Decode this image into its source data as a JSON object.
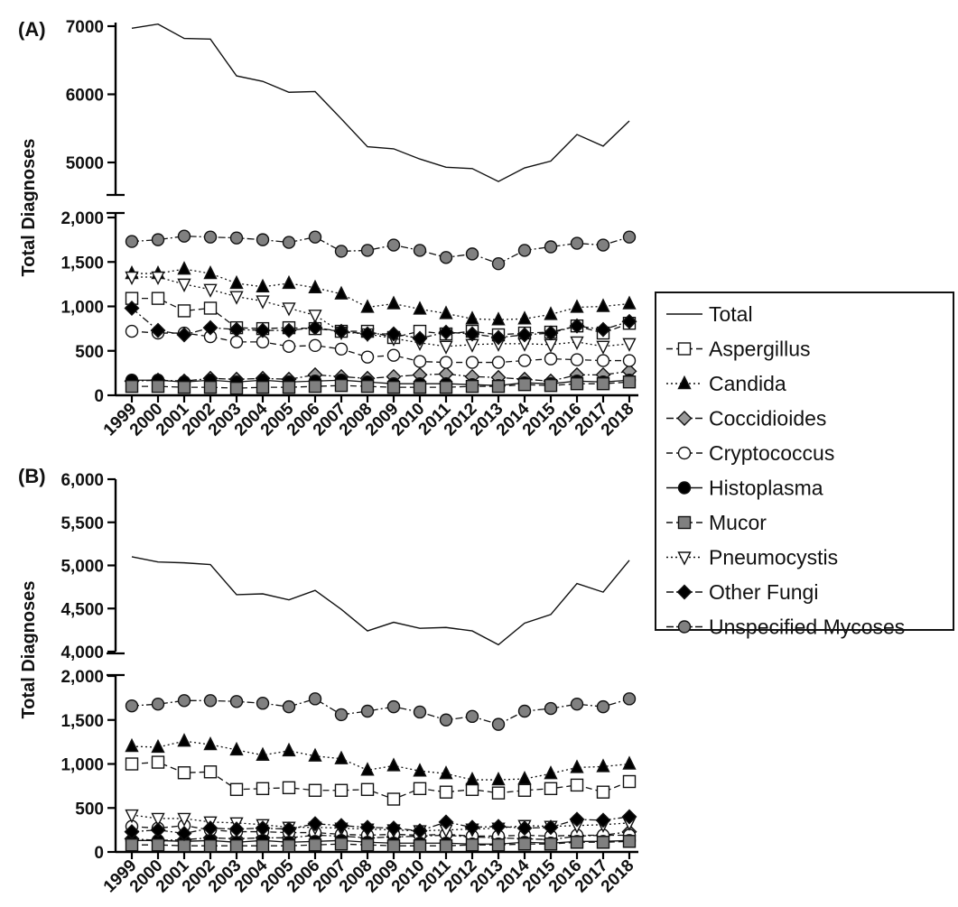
{
  "figure": {
    "legend": [
      {
        "name": "Total",
        "marker": "none",
        "dash": "solid",
        "fill": "none"
      },
      {
        "name": "Aspergillus",
        "marker": "square",
        "dash": "dash",
        "fill": "#ffffff"
      },
      {
        "name": "Candida",
        "marker": "triangle-up",
        "dash": "dot",
        "fill": "#000000"
      },
      {
        "name": "Coccidioides",
        "marker": "diamond",
        "dash": "dashdot",
        "fill": "#999999"
      },
      {
        "name": "Cryptococcus",
        "marker": "circle",
        "dash": "dash",
        "fill": "#ffffff"
      },
      {
        "name": "Histoplasma",
        "marker": "circle",
        "dash": "solid",
        "fill": "#000000"
      },
      {
        "name": "Mucor",
        "marker": "square",
        "dash": "dash",
        "fill": "#808080"
      },
      {
        "name": "Pneumocystis",
        "marker": "triangle-down",
        "dash": "dot",
        "fill": "#ffffff"
      },
      {
        "name": "Other Fungi",
        "marker": "diamond",
        "dash": "dashdot",
        "fill": "#000000"
      },
      {
        "name": "Unspecified Mycoses",
        "marker": "circle",
        "dash": "dashdot",
        "fill": "#808080"
      }
    ],
    "legend_placement": "right"
  },
  "chart_data": [
    {
      "panel_label": "(A)",
      "type": "line",
      "ylabel": "Total Diagnoses",
      "x": [
        1999,
        2000,
        2001,
        2002,
        2003,
        2004,
        2005,
        2006,
        2007,
        2008,
        2009,
        2010,
        2011,
        2012,
        2013,
        2014,
        2015,
        2016,
        2017,
        2018
      ],
      "x_tick_labels": [
        "1999",
        "2000",
        "2001",
        "2002",
        "2003",
        "2004",
        "2005",
        "2006",
        "2007",
        "2008",
        "2009",
        "2010",
        "2011",
        "2012",
        "2013",
        "2014",
        "2015",
        "2016",
        "2017",
        "2018"
      ],
      "axis_break": true,
      "upper_ylim": [
        4750,
        7100
      ],
      "upper_yticks": [
        5000,
        6000,
        7000
      ],
      "upper_ytick_labels": [
        "5000",
        "6000",
        "7000"
      ],
      "lower_ylim": [
        0,
        2000
      ],
      "lower_yticks": [
        0,
        500,
        1000,
        1500,
        2000
      ],
      "lower_ytick_labels": [
        "0",
        "500",
        "1,000",
        "1,500",
        "2,000"
      ],
      "grid": false,
      "series": [
        {
          "name": "Total",
          "values": [
            6970,
            7030,
            6820,
            6810,
            6270,
            6190,
            6030,
            6040,
            5640,
            5230,
            5200,
            5050,
            4930,
            4910,
            4720,
            4920,
            5020,
            5410,
            5240,
            5610
          ]
        },
        {
          "name": "Aspergillus",
          "values": [
            1090,
            1090,
            950,
            980,
            760,
            750,
            760,
            750,
            720,
            720,
            650,
            720,
            690,
            720,
            680,
            700,
            710,
            780,
            700,
            810
          ]
        },
        {
          "name": "Candida",
          "values": [
            1370,
            1370,
            1420,
            1370,
            1260,
            1220,
            1260,
            1210,
            1140,
            990,
            1030,
            970,
            920,
            860,
            850,
            860,
            910,
            990,
            1000,
            1030
          ]
        },
        {
          "name": "Coccidioides",
          "values": [
            160,
            170,
            160,
            190,
            180,
            190,
            180,
            230,
            210,
            190,
            210,
            230,
            240,
            210,
            200,
            180,
            160,
            230,
            230,
            270
          ]
        },
        {
          "name": "Cryptococcus",
          "values": [
            720,
            700,
            700,
            660,
            600,
            600,
            550,
            560,
            520,
            430,
            450,
            380,
            370,
            370,
            370,
            390,
            410,
            400,
            390,
            390
          ]
        },
        {
          "name": "Histoplasma",
          "values": [
            170,
            170,
            150,
            170,
            150,
            170,
            150,
            160,
            170,
            150,
            130,
            130,
            130,
            120,
            110,
            140,
            130,
            160,
            150,
            170
          ]
        },
        {
          "name": "Mucor",
          "values": [
            100,
            100,
            90,
            90,
            80,
            90,
            90,
            100,
            110,
            100,
            90,
            90,
            90,
            100,
            100,
            120,
            110,
            130,
            130,
            150
          ]
        },
        {
          "name": "Pneumocystis",
          "values": [
            1330,
            1330,
            1250,
            1190,
            1110,
            1060,
            980,
            900,
            710,
            690,
            640,
            590,
            550,
            570,
            580,
            580,
            570,
            600,
            550,
            580
          ]
        },
        {
          "name": "Other Fungi",
          "values": [
            980,
            730,
            680,
            760,
            740,
            730,
            730,
            760,
            720,
            690,
            690,
            640,
            710,
            690,
            650,
            680,
            700,
            780,
            740,
            830
          ]
        },
        {
          "name": "Unspecified Mycoses",
          "values": [
            1730,
            1750,
            1790,
            1780,
            1770,
            1750,
            1720,
            1780,
            1620,
            1630,
            1690,
            1630,
            1550,
            1590,
            1480,
            1630,
            1670,
            1710,
            1690,
            1780
          ]
        }
      ]
    },
    {
      "panel_label": "(B)",
      "type": "line",
      "ylabel": "Total Diagnoses",
      "x": [
        1999,
        2000,
        2001,
        2002,
        2003,
        2004,
        2005,
        2006,
        2007,
        2008,
        2009,
        2010,
        2011,
        2012,
        2013,
        2014,
        2015,
        2016,
        2017,
        2018
      ],
      "x_tick_labels": [
        "1999",
        "2000",
        "2001",
        "2002",
        "2003",
        "2004",
        "2005",
        "2006",
        "2007",
        "2008",
        "2009",
        "2010",
        "2011",
        "2012",
        "2013",
        "2014",
        "2015",
        "2016",
        "2017",
        "2018"
      ],
      "axis_break": true,
      "upper_ylim": [
        4000,
        6000
      ],
      "upper_yticks": [
        4000,
        4500,
        5000,
        5500,
        6000
      ],
      "upper_ytick_labels": [
        "4,000",
        "4,500",
        "5,000",
        "5,500",
        "6,000"
      ],
      "lower_ylim": [
        0,
        2000
      ],
      "lower_yticks": [
        0,
        500,
        1000,
        1500,
        2000
      ],
      "lower_ytick_labels": [
        "0",
        "500",
        "1,000",
        "1,500",
        "2,000"
      ],
      "grid": false,
      "series": [
        {
          "name": "Total",
          "values": [
            5100,
            5040,
            5030,
            5010,
            4660,
            4670,
            4600,
            4710,
            4490,
            4240,
            4340,
            4270,
            4280,
            4240,
            4080,
            4330,
            4430,
            4790,
            4690,
            5060
          ]
        },
        {
          "name": "Aspergillus",
          "values": [
            1000,
            1020,
            900,
            910,
            710,
            720,
            730,
            700,
            700,
            710,
            600,
            720,
            680,
            710,
            670,
            700,
            720,
            760,
            680,
            800
          ]
        },
        {
          "name": "Candida",
          "values": [
            1200,
            1190,
            1260,
            1220,
            1160,
            1100,
            1150,
            1090,
            1060,
            930,
            980,
            920,
            890,
            820,
            820,
            830,
            890,
            960,
            970,
            1000
          ]
        },
        {
          "name": "Coccidioides",
          "values": [
            150,
            130,
            140,
            160,
            150,
            160,
            160,
            190,
            180,
            160,
            170,
            180,
            190,
            170,
            160,
            150,
            140,
            180,
            190,
            230
          ]
        },
        {
          "name": "Cryptococcus",
          "values": [
            290,
            270,
            300,
            250,
            230,
            230,
            220,
            220,
            200,
            190,
            200,
            190,
            200,
            180,
            180,
            190,
            180,
            190,
            190,
            190
          ]
        },
        {
          "name": "Histoplasma",
          "values": [
            130,
            130,
            120,
            130,
            110,
            130,
            110,
            120,
            130,
            110,
            100,
            100,
            100,
            90,
            90,
            110,
            100,
            120,
            120,
            130
          ]
        },
        {
          "name": "Mucor",
          "values": [
            80,
            80,
            70,
            70,
            70,
            70,
            70,
            80,
            90,
            80,
            70,
            70,
            70,
            80,
            80,
            90,
            90,
            110,
            110,
            120
          ]
        },
        {
          "name": "Pneumocystis",
          "values": [
            420,
            380,
            380,
            340,
            330,
            310,
            280,
            280,
            270,
            260,
            250,
            240,
            250,
            260,
            270,
            300,
            290,
            300,
            310,
            330
          ]
        },
        {
          "name": "Other Fungi",
          "values": [
            230,
            250,
            210,
            270,
            260,
            270,
            260,
            320,
            300,
            280,
            270,
            240,
            340,
            280,
            290,
            270,
            280,
            370,
            360,
            400
          ]
        },
        {
          "name": "Unspecified Mycoses",
          "values": [
            1660,
            1680,
            1720,
            1720,
            1710,
            1690,
            1650,
            1740,
            1560,
            1600,
            1650,
            1590,
            1500,
            1540,
            1450,
            1600,
            1630,
            1680,
            1650,
            1740
          ]
        }
      ]
    }
  ]
}
